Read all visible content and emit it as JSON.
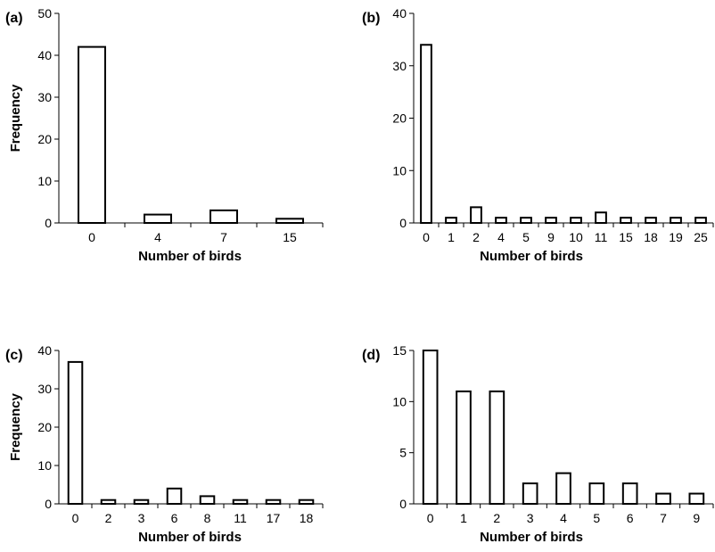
{
  "chart_data": [
    {
      "panel": "(a)",
      "type": "bar",
      "xlabel": "Number of birds",
      "ylabel": "Frequency",
      "ylim": [
        0,
        50
      ],
      "yticks": [
        0,
        10,
        20,
        30,
        40,
        50
      ],
      "categories": [
        "0",
        "4",
        "7",
        "15"
      ],
      "values": [
        42,
        2,
        3,
        1
      ]
    },
    {
      "panel": "(b)",
      "type": "bar",
      "xlabel": "Number of birds",
      "ylabel": "",
      "ylim": [
        0,
        40
      ],
      "yticks": [
        0,
        10,
        20,
        30,
        40
      ],
      "categories": [
        "0",
        "1",
        "2",
        "4",
        "5",
        "9",
        "10",
        "11",
        "15",
        "18",
        "19",
        "25"
      ],
      "values": [
        34,
        1,
        3,
        1,
        1,
        1,
        1,
        2,
        1,
        1,
        1,
        1
      ]
    },
    {
      "panel": "(c)",
      "type": "bar",
      "xlabel": "Number of birds",
      "ylabel": "Frequency",
      "ylim": [
        0,
        40
      ],
      "yticks": [
        0,
        10,
        20,
        30,
        40
      ],
      "categories": [
        "0",
        "2",
        "3",
        "6",
        "8",
        "11",
        "17",
        "18"
      ],
      "values": [
        37,
        1,
        1,
        4,
        2,
        1,
        1,
        1
      ]
    },
    {
      "panel": "(d)",
      "type": "bar",
      "xlabel": "Number of birds",
      "ylabel": "",
      "ylim": [
        0,
        15
      ],
      "yticks": [
        0,
        5,
        10,
        15
      ],
      "categories": [
        "0",
        "1",
        "2",
        "3",
        "4",
        "5",
        "6",
        "7",
        "9"
      ],
      "values": [
        15,
        11,
        11,
        2,
        3,
        2,
        2,
        1,
        1
      ]
    }
  ]
}
